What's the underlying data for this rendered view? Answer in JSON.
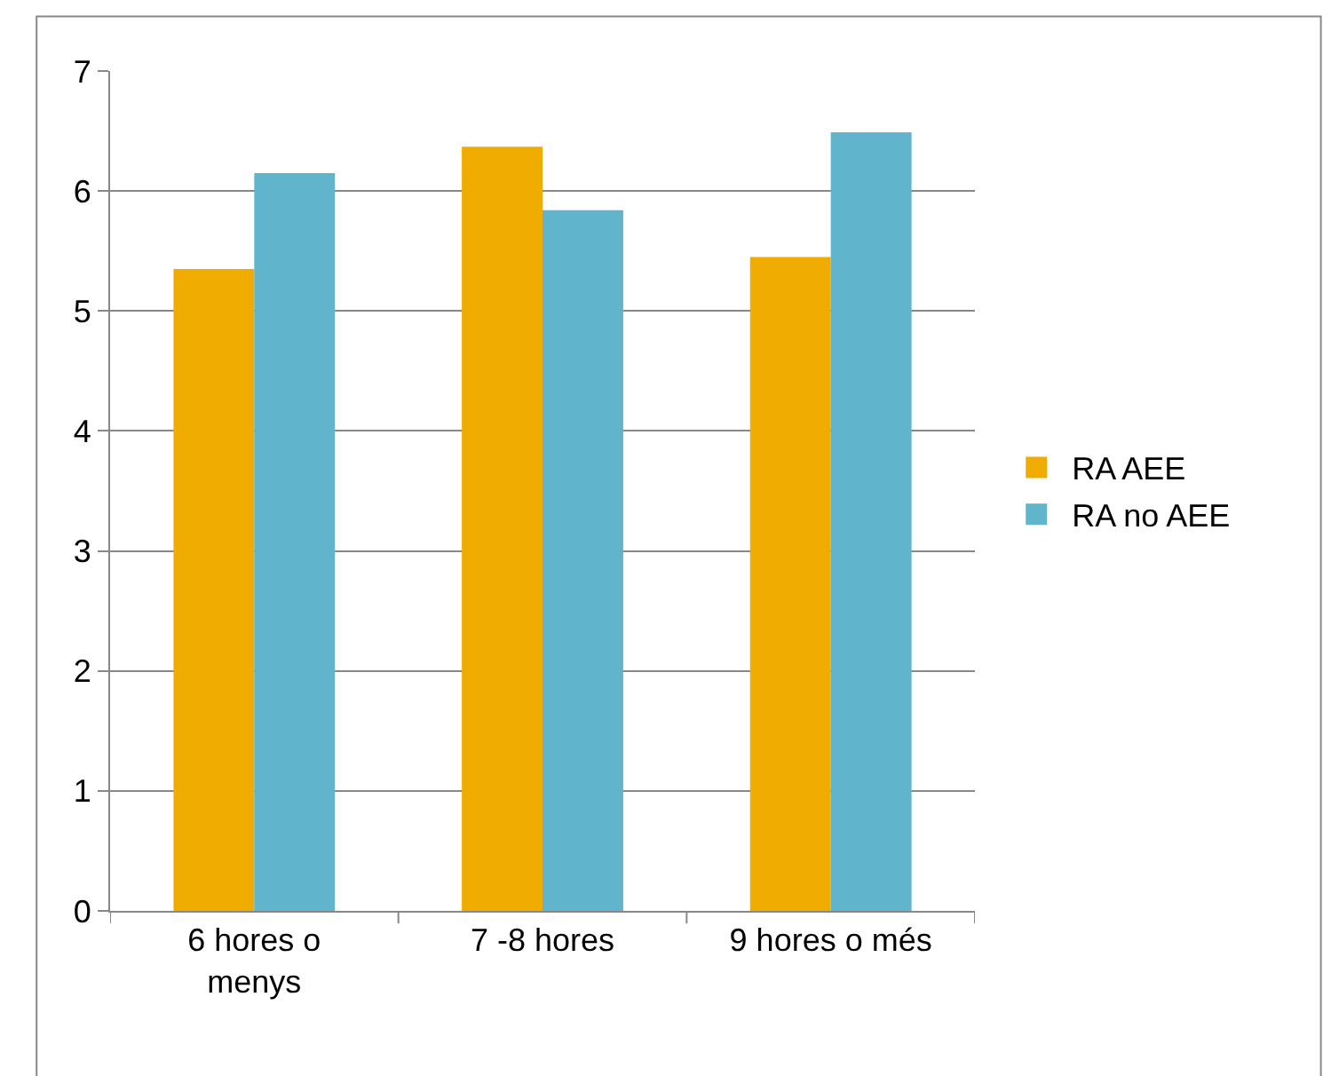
{
  "chart_data": {
    "type": "bar",
    "categories": [
      "6 hores o menys",
      "7 -8 hores",
      "9 hores o més"
    ],
    "series": [
      {
        "name": "RA AEE",
        "color": "#f0ac00",
        "values": [
          5.35,
          6.37,
          5.45
        ]
      },
      {
        "name": "RA no AEE",
        "color": "#60b4cb",
        "values": [
          6.15,
          5.84,
          6.49
        ]
      }
    ],
    "ylim": [
      0,
      7
    ],
    "yticks": [
      0,
      1,
      2,
      3,
      4,
      5,
      6,
      7
    ],
    "grid": "y",
    "legend": "right"
  }
}
